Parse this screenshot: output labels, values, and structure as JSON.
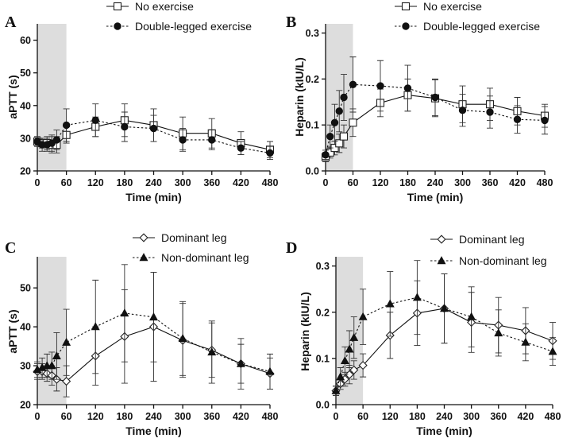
{
  "charts": [
    {
      "panel_label": "A",
      "chart_data": {
        "type": "line",
        "xlabel": "Time (min)",
        "ylabel": "aPTT (s)",
        "x_ticks": [
          0,
          60,
          120,
          180,
          240,
          300,
          360,
          420,
          480
        ],
        "y_ticks": [
          20,
          30,
          40,
          50,
          60
        ],
        "xlim": [
          0,
          480
        ],
        "ylim": [
          20,
          65
        ],
        "shaded_region": [
          0,
          60
        ],
        "series": [
          {
            "name": "No exercise",
            "marker": "open-square",
            "line": "solid",
            "x": [
              0,
              10,
              20,
              30,
              40,
              60,
              120,
              180,
              240,
              300,
              360,
              420,
              480
            ],
            "values": [
              29.0,
              28.5,
              28.5,
              28.0,
              28.0,
              31.0,
              33.5,
              35.5,
              34.0,
              31.5,
              31.5,
              28.5,
              26.5
            ],
            "err": [
              1.5,
              1.5,
              2.0,
              2.5,
              2.5,
              2.5,
              3.0,
              5.0,
              5.0,
              5.0,
              4.5,
              3.5,
              2.5
            ]
          },
          {
            "name": "Double-legged exercise",
            "marker": "filled-circle",
            "line": "dotted",
            "x": [
              0,
              10,
              20,
              30,
              40,
              60,
              120,
              180,
              240,
              300,
              360,
              420,
              480
            ],
            "values": [
              29.0,
              28.0,
              28.0,
              28.5,
              29.5,
              34.0,
              35.5,
              33.5,
              33.0,
              29.5,
              29.5,
              27.0,
              25.5
            ],
            "err": [
              1.5,
              2.0,
              2.0,
              2.5,
              3.0,
              5.0,
              5.0,
              4.5,
              4.0,
              3.5,
              3.0,
              2.0,
              2.0
            ]
          }
        ]
      }
    },
    {
      "panel_label": "B",
      "chart_data": {
        "type": "line",
        "xlabel": "Time (min)",
        "ylabel": "Heparin (kIU/L)",
        "x_ticks": [
          0,
          60,
          120,
          180,
          240,
          300,
          360,
          420,
          480
        ],
        "y_ticks": [
          "0.0",
          "0.1",
          "0.2",
          "0.3"
        ],
        "xlim": [
          0,
          480
        ],
        "ylim": [
          0,
          0.32
        ],
        "shaded_region": [
          0,
          60
        ],
        "series": [
          {
            "name": "No exercise",
            "marker": "open-square",
            "line": "solid",
            "x": [
              0,
              10,
              20,
              30,
              40,
              60,
              120,
              180,
              240,
              300,
              360,
              420,
              480
            ],
            "values": [
              0.03,
              0.04,
              0.05,
              0.06,
              0.075,
              0.105,
              0.148,
              0.165,
              0.158,
              0.145,
              0.145,
              0.13,
              0.12
            ],
            "err": [
              0.01,
              0.012,
              0.015,
              0.02,
              0.025,
              0.03,
              0.03,
              0.035,
              0.04,
              0.04,
              0.035,
              0.03,
              0.025
            ]
          },
          {
            "name": "Double-legged exercise",
            "marker": "filled-circle",
            "line": "dotted",
            "x": [
              0,
              10,
              20,
              30,
              40,
              60,
              120,
              180,
              240,
              300,
              360,
              420,
              480
            ],
            "values": [
              0.035,
              0.075,
              0.105,
              0.13,
              0.16,
              0.188,
              0.185,
              0.18,
              0.16,
              0.132,
              0.128,
              0.112,
              0.11
            ],
            "err": [
              0.01,
              0.025,
              0.04,
              0.045,
              0.05,
              0.06,
              0.055,
              0.05,
              0.04,
              0.035,
              0.035,
              0.03,
              0.03
            ]
          }
        ]
      }
    },
    {
      "panel_label": "C",
      "chart_data": {
        "type": "line",
        "xlabel": "Time (min)",
        "ylabel": "aPTT (s)",
        "x_ticks": [
          0,
          60,
          120,
          180,
          240,
          300,
          360,
          420,
          480
        ],
        "y_ticks": [
          20,
          30,
          40,
          50
        ],
        "xlim": [
          0,
          480
        ],
        "ylim": [
          20,
          58
        ],
        "shaded_region": [
          0,
          60
        ],
        "series": [
          {
            "name": "Dominant leg",
            "marker": "open-diamond",
            "line": "solid",
            "x": [
              0,
              10,
              20,
              30,
              40,
              60,
              120,
              180,
              240,
              300,
              360,
              420,
              480
            ],
            "values": [
              28.5,
              28.5,
              28.0,
              27.5,
              26.5,
              26.0,
              32.5,
              37.5,
              40.0,
              36.5,
              34.0,
              30.5,
              28.0
            ],
            "err": [
              2.0,
              2.0,
              2.0,
              2.5,
              3.0,
              4.0,
              7.5,
              12.0,
              14.0,
              9.5,
              7.0,
              5.0,
              4.0
            ]
          },
          {
            "name": "Non-dominant leg",
            "marker": "filled-triangle",
            "line": "dotted",
            "x": [
              0,
              10,
              20,
              30,
              40,
              60,
              120,
              180,
              240,
              300,
              360,
              420,
              480
            ],
            "values": [
              29.0,
              29.5,
              30.0,
              30.0,
              32.5,
              36.0,
              40.0,
              43.5,
              42.5,
              37.0,
              33.5,
              30.5,
              28.5
            ],
            "err": [
              2.0,
              2.5,
              3.0,
              3.5,
              6.0,
              8.5,
              12.0,
              12.5,
              11.5,
              9.5,
              8.0,
              6.5,
              4.5
            ]
          }
        ]
      }
    },
    {
      "panel_label": "D",
      "chart_data": {
        "type": "line",
        "xlabel": "Time (min)",
        "ylabel": "Heparin (kIU/L)",
        "x_ticks": [
          0,
          60,
          120,
          180,
          240,
          300,
          360,
          420,
          480
        ],
        "y_ticks": [
          "0.0",
          "0.1",
          "0.2",
          "0.3"
        ],
        "xlim": [
          0,
          480
        ],
        "ylim": [
          0,
          0.32
        ],
        "shaded_region": [
          0,
          60
        ],
        "series": [
          {
            "name": "Dominant leg",
            "marker": "open-diamond",
            "line": "solid",
            "x": [
              0,
              10,
              20,
              30,
              40,
              60,
              120,
              180,
              240,
              300,
              360,
              420,
              480
            ],
            "values": [
              0.03,
              0.045,
              0.055,
              0.065,
              0.075,
              0.085,
              0.15,
              0.198,
              0.208,
              0.178,
              0.172,
              0.16,
              0.138
            ],
            "err": [
              0.01,
              0.012,
              0.015,
              0.02,
              0.02,
              0.025,
              0.05,
              0.07,
              0.075,
              0.065,
              0.06,
              0.05,
              0.04
            ]
          },
          {
            "name": "Non-dominant leg",
            "marker": "filled-triangle",
            "line": "dotted",
            "x": [
              0,
              10,
              20,
              30,
              40,
              60,
              120,
              180,
              240,
              300,
              360,
              420,
              480
            ],
            "values": [
              0.03,
              0.06,
              0.095,
              0.12,
              0.145,
              0.19,
              0.218,
              0.232,
              0.208,
              0.19,
              0.155,
              0.135,
              0.115
            ],
            "err": [
              0.01,
              0.02,
              0.03,
              0.04,
              0.045,
              0.06,
              0.07,
              0.08,
              0.075,
              0.065,
              0.05,
              0.04,
              0.03
            ]
          }
        ]
      }
    }
  ]
}
